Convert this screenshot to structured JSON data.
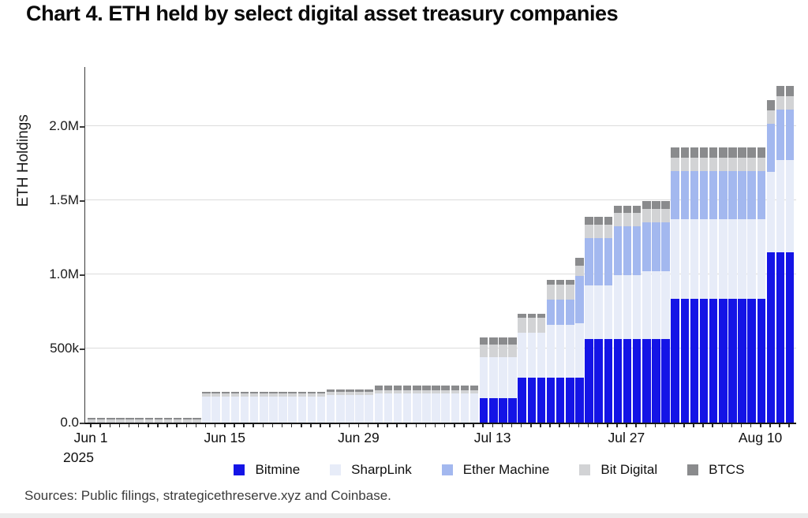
{
  "title": "Chart 4. ETH held by select digital asset treasury companies",
  "source_note": "Sources: Public filings, strategicethreserve.xyz and Coinbase.",
  "chart_data": {
    "type": "bar",
    "stacked": true,
    "title": "Chart 4. ETH held by select digital asset treasury companies",
    "ylabel": "ETH Holdings",
    "values_unit": "thousand ETH",
    "x_unit": "day",
    "x_start": "Jun 1 2025",
    "x_end": "Aug 13 2025",
    "n_bars": 74,
    "ylim_thousands": [
      0,
      2400
    ],
    "grid": "horizontal",
    "legend_position": "bottom",
    "yticks": [
      {
        "value": 0,
        "label": "0.0"
      },
      {
        "value": 500,
        "label": "500k"
      },
      {
        "value": 1000,
        "label": "1.0M"
      },
      {
        "value": 1500,
        "label": "1.5M"
      },
      {
        "value": 2000,
        "label": "2.0M"
      }
    ],
    "xticks": [
      {
        "index": 0,
        "label": "Jun 1"
      },
      {
        "index": 14,
        "label": "Jun 15"
      },
      {
        "index": 28,
        "label": "Jun 29"
      },
      {
        "index": 42,
        "label": "Jul 13"
      },
      {
        "index": 56,
        "label": "Jul 27"
      },
      {
        "index": 70,
        "label": "Aug 10"
      }
    ],
    "x_year_label": "2025",
    "series": [
      {
        "key": "bitmine",
        "label": "Bitmine",
        "color": "#1414e6"
      },
      {
        "key": "sharplink",
        "label": "SharpLink",
        "color": "#e7ecf8"
      },
      {
        "key": "ether_machine",
        "label": "Ether Machine",
        "color": "#a3b8ef"
      },
      {
        "key": "bit_digital",
        "label": "Bit Digital",
        "color": "#d2d3d5"
      },
      {
        "key": "btcs",
        "label": "BTCS",
        "color": "#8a8b8d"
      }
    ],
    "periods": [
      {
        "dates": "Jun 1-12",
        "days": 12,
        "values": [
          0,
          0,
          0,
          20,
          14
        ],
        "total": 34
      },
      {
        "dates": "Jun 13-25",
        "days": 13,
        "values": [
          0,
          176,
          0,
          20,
          14
        ],
        "total": 210
      },
      {
        "dates": "Jun 26-30",
        "days": 5,
        "values": [
          0,
          188,
          0,
          21,
          14
        ],
        "total": 223
      },
      {
        "dates": "Jul 1-11",
        "days": 11,
        "values": [
          0,
          198,
          0,
          21,
          29
        ],
        "total": 248
      },
      {
        "dates": "Jul 12-15",
        "days": 4,
        "values": [
          163,
          280,
          0,
          85,
          45
        ],
        "total": 573
      },
      {
        "dates": "Jul 16-18",
        "days": 3,
        "values": [
          301,
          305,
          0,
          100,
          30
        ],
        "total": 736
      },
      {
        "dates": "Jul 19-21",
        "days": 3,
        "values": [
          301,
          360,
          170,
          100,
          32
        ],
        "total": 963
      },
      {
        "dates": "Jul 22",
        "days": 1,
        "values": [
          301,
          370,
          320,
          70,
          50
        ],
        "total": 1111
      },
      {
        "dates": "Jul 23-25",
        "days": 3,
        "values": [
          566,
          360,
          319,
          90,
          53
        ],
        "total": 1388
      },
      {
        "dates": "Jul 26-28",
        "days": 3,
        "values": [
          566,
          430,
          330,
          90,
          50
        ],
        "total": 1466
      },
      {
        "dates": "Jul 29-31",
        "days": 3,
        "values": [
          566,
          455,
          333,
          90,
          52
        ],
        "total": 1496
      },
      {
        "dates": "Aug 1-10",
        "days": 10,
        "values": [
          833,
          540,
          325,
          90,
          70
        ],
        "total": 1858
      },
      {
        "dates": "Aug 11",
        "days": 1,
        "values": [
          1150,
          540,
          325,
          90,
          70
        ],
        "total": 2175
      },
      {
        "dates": "Aug 12-13",
        "days": 2,
        "values": [
          1150,
          620,
          345,
          90,
          70
        ],
        "total": 2275
      }
    ]
  }
}
